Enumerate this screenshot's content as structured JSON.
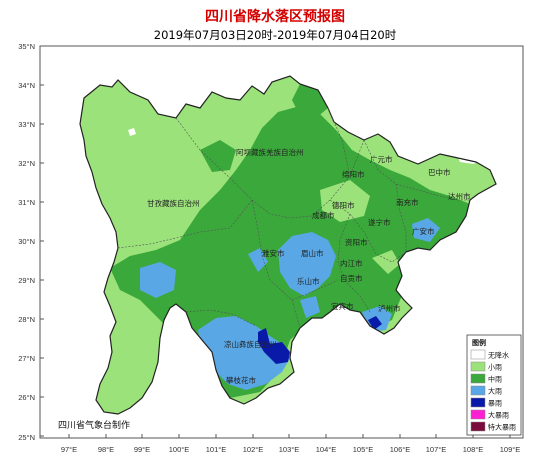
{
  "title": "四川省降水落区预报图",
  "subtitle": "2019年07月03日20时-2019年07月04日20时",
  "credit": "四川省气象台制作",
  "lat_labels": [
    "35°N",
    "34°N",
    "33°N",
    "32°N",
    "31°N",
    "30°N",
    "29°N",
    "28°N",
    "27°N",
    "26°N",
    "25°N"
  ],
  "lon_labels": [
    "97°E",
    "98°E",
    "99°E",
    "100°E",
    "101°E",
    "102°E",
    "103°E",
    "104°E",
    "105°E",
    "106°E",
    "107°E",
    "108°E",
    "109°E"
  ],
  "legend": {
    "title": "图例",
    "items": [
      {
        "label": "无降水",
        "color": "#ffffff"
      },
      {
        "label": "小雨",
        "color": "#9be27a"
      },
      {
        "label": "中雨",
        "color": "#3aa83a"
      },
      {
        "label": "大雨",
        "color": "#5aa7e6"
      },
      {
        "label": "暴雨",
        "color": "#0a1aa8"
      },
      {
        "label": "大暴雨",
        "color": "#ff1fd2"
      },
      {
        "label": "特大暴雨",
        "color": "#7a0a3c"
      }
    ]
  },
  "places": [
    {
      "name": "阿坝藏族羌族自治州"
    },
    {
      "name": "甘孜藏族自治州"
    },
    {
      "name": "广元市"
    },
    {
      "name": "巴中市"
    },
    {
      "name": "绵阳市"
    },
    {
      "name": "南充市"
    },
    {
      "name": "达州市"
    },
    {
      "name": "德阳市"
    },
    {
      "name": "成都市"
    },
    {
      "name": "遂宁市"
    },
    {
      "name": "广安市"
    },
    {
      "name": "雅安市"
    },
    {
      "name": "眉山市"
    },
    {
      "name": "资阳市"
    },
    {
      "name": "内江市"
    },
    {
      "name": "乐山市"
    },
    {
      "name": "自贡市"
    },
    {
      "name": "宜宾市"
    },
    {
      "name": "泸州市"
    },
    {
      "name": "凉山彝族自治州"
    },
    {
      "name": "攀枝花市"
    }
  ]
}
